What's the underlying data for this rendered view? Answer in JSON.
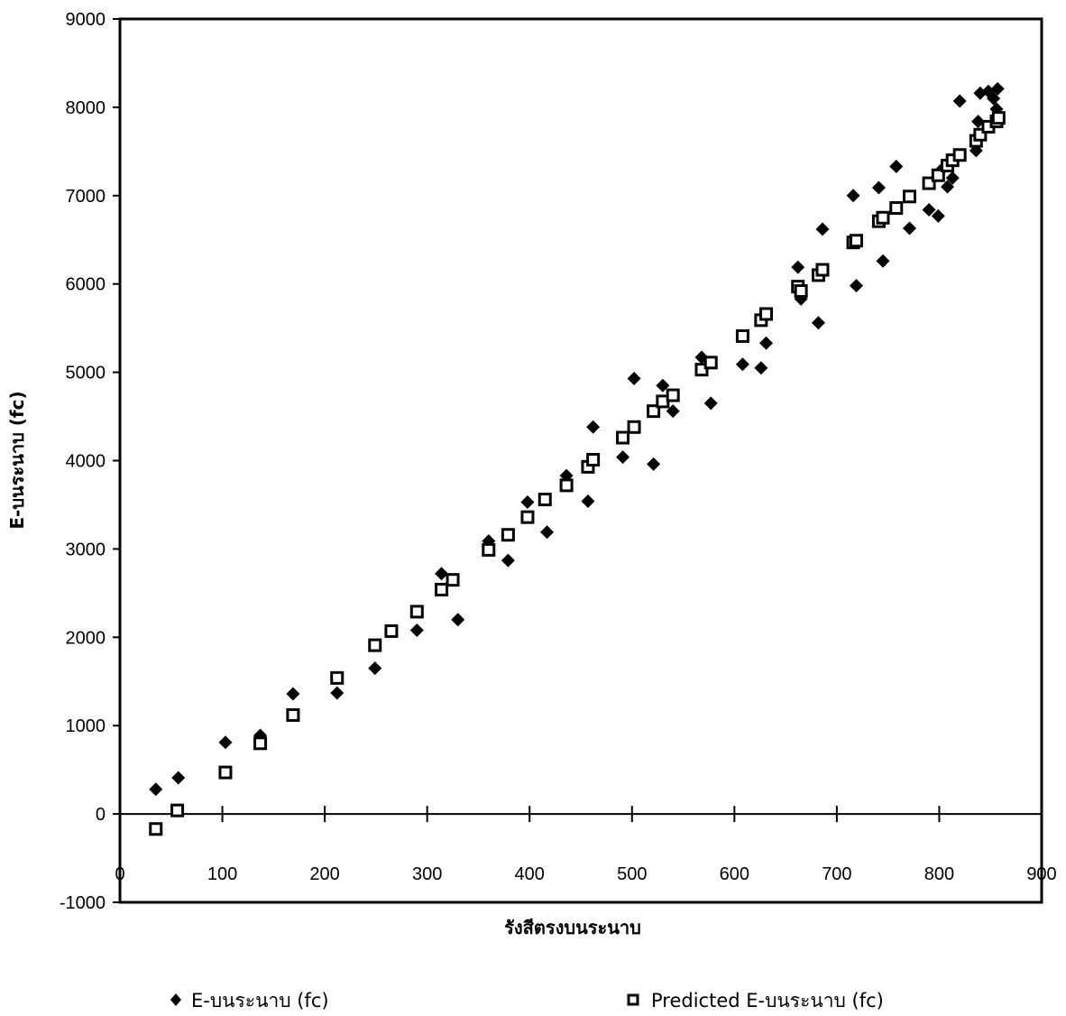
{
  "chart_data": {
    "type": "scatter",
    "xlabel": "รังสีตรงบนระนาบ",
    "ylabel": "E-บนระนาบ (fc)",
    "xlim": [
      0,
      900
    ],
    "ylim": [
      -1000,
      9000
    ],
    "x_ticks": [
      0,
      100,
      200,
      300,
      400,
      500,
      600,
      700,
      800,
      900
    ],
    "y_ticks": [
      -1000,
      0,
      1000,
      2000,
      3000,
      4000,
      5000,
      6000,
      7000,
      8000,
      9000
    ],
    "grid": false,
    "legend_position": "bottom",
    "series": [
      {
        "name": "E-บนระนาบ (fc)",
        "marker": "diamond",
        "color": "#000000",
        "points": [
          [
            35,
            280
          ],
          [
            57,
            410
          ],
          [
            103,
            810
          ],
          [
            137,
            890
          ],
          [
            169,
            1360
          ],
          [
            212,
            1370
          ],
          [
            249,
            1650
          ],
          [
            290,
            2080
          ],
          [
            314,
            2720
          ],
          [
            330,
            2200
          ],
          [
            360,
            3090
          ],
          [
            379,
            2870
          ],
          [
            398,
            3530
          ],
          [
            417,
            3190
          ],
          [
            436,
            3830
          ],
          [
            457,
            3540
          ],
          [
            462,
            4380
          ],
          [
            491,
            4040
          ],
          [
            502,
            4930
          ],
          [
            521,
            3960
          ],
          [
            530,
            4850
          ],
          [
            540,
            4560
          ],
          [
            568,
            5170
          ],
          [
            577,
            4650
          ],
          [
            608,
            5090
          ],
          [
            626,
            5050
          ],
          [
            631,
            5330
          ],
          [
            662,
            6190
          ],
          [
            665,
            5830
          ],
          [
            682,
            5560
          ],
          [
            686,
            6620
          ],
          [
            716,
            7000
          ],
          [
            719,
            5980
          ],
          [
            741,
            7090
          ],
          [
            745,
            6260
          ],
          [
            758,
            7330
          ],
          [
            771,
            6630
          ],
          [
            790,
            6840
          ],
          [
            799,
            6770
          ],
          [
            802,
            7290
          ],
          [
            808,
            7100
          ],
          [
            813,
            7200
          ],
          [
            820,
            8070
          ],
          [
            836,
            7510
          ],
          [
            838,
            7840
          ],
          [
            840,
            8160
          ],
          [
            848,
            8180
          ],
          [
            853,
            8100
          ],
          [
            857,
            8210
          ],
          [
            856,
            7980
          ]
        ]
      },
      {
        "name": "Predicted E-บนระนาบ (fc)",
        "marker": "square",
        "color": "#000000",
        "points": [
          [
            35,
            -170
          ],
          [
            56,
            40
          ],
          [
            103,
            470
          ],
          [
            137,
            800
          ],
          [
            169,
            1120
          ],
          [
            212,
            1540
          ],
          [
            249,
            1910
          ],
          [
            265,
            2070
          ],
          [
            290,
            2290
          ],
          [
            314,
            2540
          ],
          [
            325,
            2650
          ],
          [
            360,
            2990
          ],
          [
            379,
            3160
          ],
          [
            398,
            3360
          ],
          [
            415,
            3560
          ],
          [
            436,
            3720
          ],
          [
            457,
            3930
          ],
          [
            462,
            4010
          ],
          [
            491,
            4260
          ],
          [
            502,
            4380
          ],
          [
            521,
            4560
          ],
          [
            530,
            4670
          ],
          [
            540,
            4740
          ],
          [
            568,
            5030
          ],
          [
            577,
            5110
          ],
          [
            608,
            5410
          ],
          [
            626,
            5590
          ],
          [
            631,
            5660
          ],
          [
            662,
            5970
          ],
          [
            665,
            5920
          ],
          [
            682,
            6100
          ],
          [
            686,
            6160
          ],
          [
            716,
            6470
          ],
          [
            719,
            6490
          ],
          [
            741,
            6710
          ],
          [
            745,
            6750
          ],
          [
            758,
            6860
          ],
          [
            771,
            6990
          ],
          [
            790,
            7140
          ],
          [
            799,
            7230
          ],
          [
            808,
            7340
          ],
          [
            813,
            7400
          ],
          [
            820,
            7460
          ],
          [
            836,
            7620
          ],
          [
            840,
            7690
          ],
          [
            848,
            7780
          ],
          [
            856,
            7840
          ],
          [
            858,
            7880
          ]
        ]
      }
    ]
  }
}
